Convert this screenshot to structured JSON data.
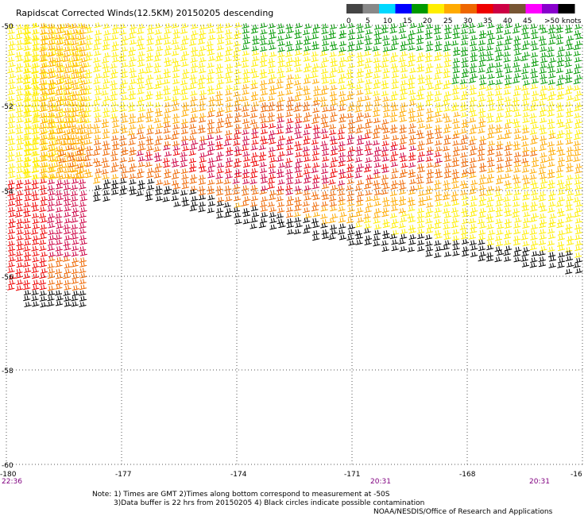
{
  "title": "Rapidscat Corrected Winds(12.5KM) 20150205 descending",
  "legend": {
    "colors": [
      "#444444",
      "#888888",
      "#00d8ff",
      "#0000ff",
      "#009900",
      "#ffee00",
      "#ffaa00",
      "#ee6600",
      "#ee0000",
      "#cc0044",
      "#775533",
      "#ff00ff",
      "#8800cc",
      "#000000"
    ],
    "labels": [
      "0",
      "5",
      "10",
      "15",
      "20",
      "25",
      "30",
      "35",
      "40",
      "45",
      ">50 knots"
    ]
  },
  "lat_labels": [
    "-50",
    "-52",
    "-54",
    "-56",
    "-58",
    "-60"
  ],
  "lon_labels": [
    "-180",
    "-177",
    "-174",
    "-171",
    "-168",
    "-16"
  ],
  "time_labels": [
    "22:36",
    "20:31",
    "20:31"
  ],
  "notes": [
    "Note: 1) Times are GMT 2)Times along bottom correspond to measurement at -50S",
    "3)Data buffer is 22 hrs from 20150205 4) Black circles indicate possible contamination",
    "NOAA/NESDIS/Office of Research and Applications"
  ]
}
